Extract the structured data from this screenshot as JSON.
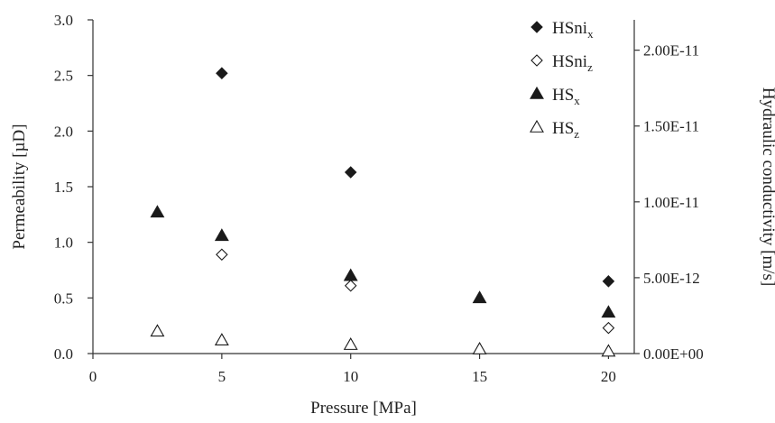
{
  "chart_data": {
    "type": "scatter",
    "title": "",
    "xlabel": "Pressure [MPa]",
    "ylabel": "Permeability [µD]",
    "y2label": "Hydraulic conductivity [m/s]",
    "xlim": [
      0,
      21
    ],
    "ylim": [
      0,
      3.0
    ],
    "y2lim": [
      0,
      2.2e-11
    ],
    "x_ticks": [
      "0",
      "5",
      "10",
      "15",
      "20"
    ],
    "y_ticks": [
      "0.0",
      "0.5",
      "1.0",
      "1.5",
      "2.0",
      "2.5",
      "3.0"
    ],
    "y2_ticks": [
      "0.00E+00",
      "5.00E-12",
      "1.00E-11",
      "1.50E-11",
      "2.00E-11"
    ],
    "grid": false,
    "legend_position": "top-right",
    "series": [
      {
        "name": "HSni",
        "subscript": "x",
        "marker": "diamond-filled",
        "x": [
          5,
          10,
          20
        ],
        "y": [
          2.52,
          1.63,
          0.65
        ]
      },
      {
        "name": "HSni",
        "subscript": "z",
        "marker": "diamond-open",
        "x": [
          5,
          10,
          20
        ],
        "y": [
          0.89,
          0.61,
          0.23
        ]
      },
      {
        "name": "HS",
        "subscript": "x",
        "marker": "triangle-filled",
        "x": [
          2.5,
          5,
          10,
          15,
          20
        ],
        "y": [
          1.27,
          1.06,
          0.7,
          0.5,
          0.37
        ]
      },
      {
        "name": "HS",
        "subscript": "z",
        "marker": "triangle-open",
        "x": [
          2.5,
          5,
          10,
          15,
          20
        ],
        "y": [
          0.2,
          0.12,
          0.08,
          0.04,
          0.02
        ]
      }
    ]
  }
}
